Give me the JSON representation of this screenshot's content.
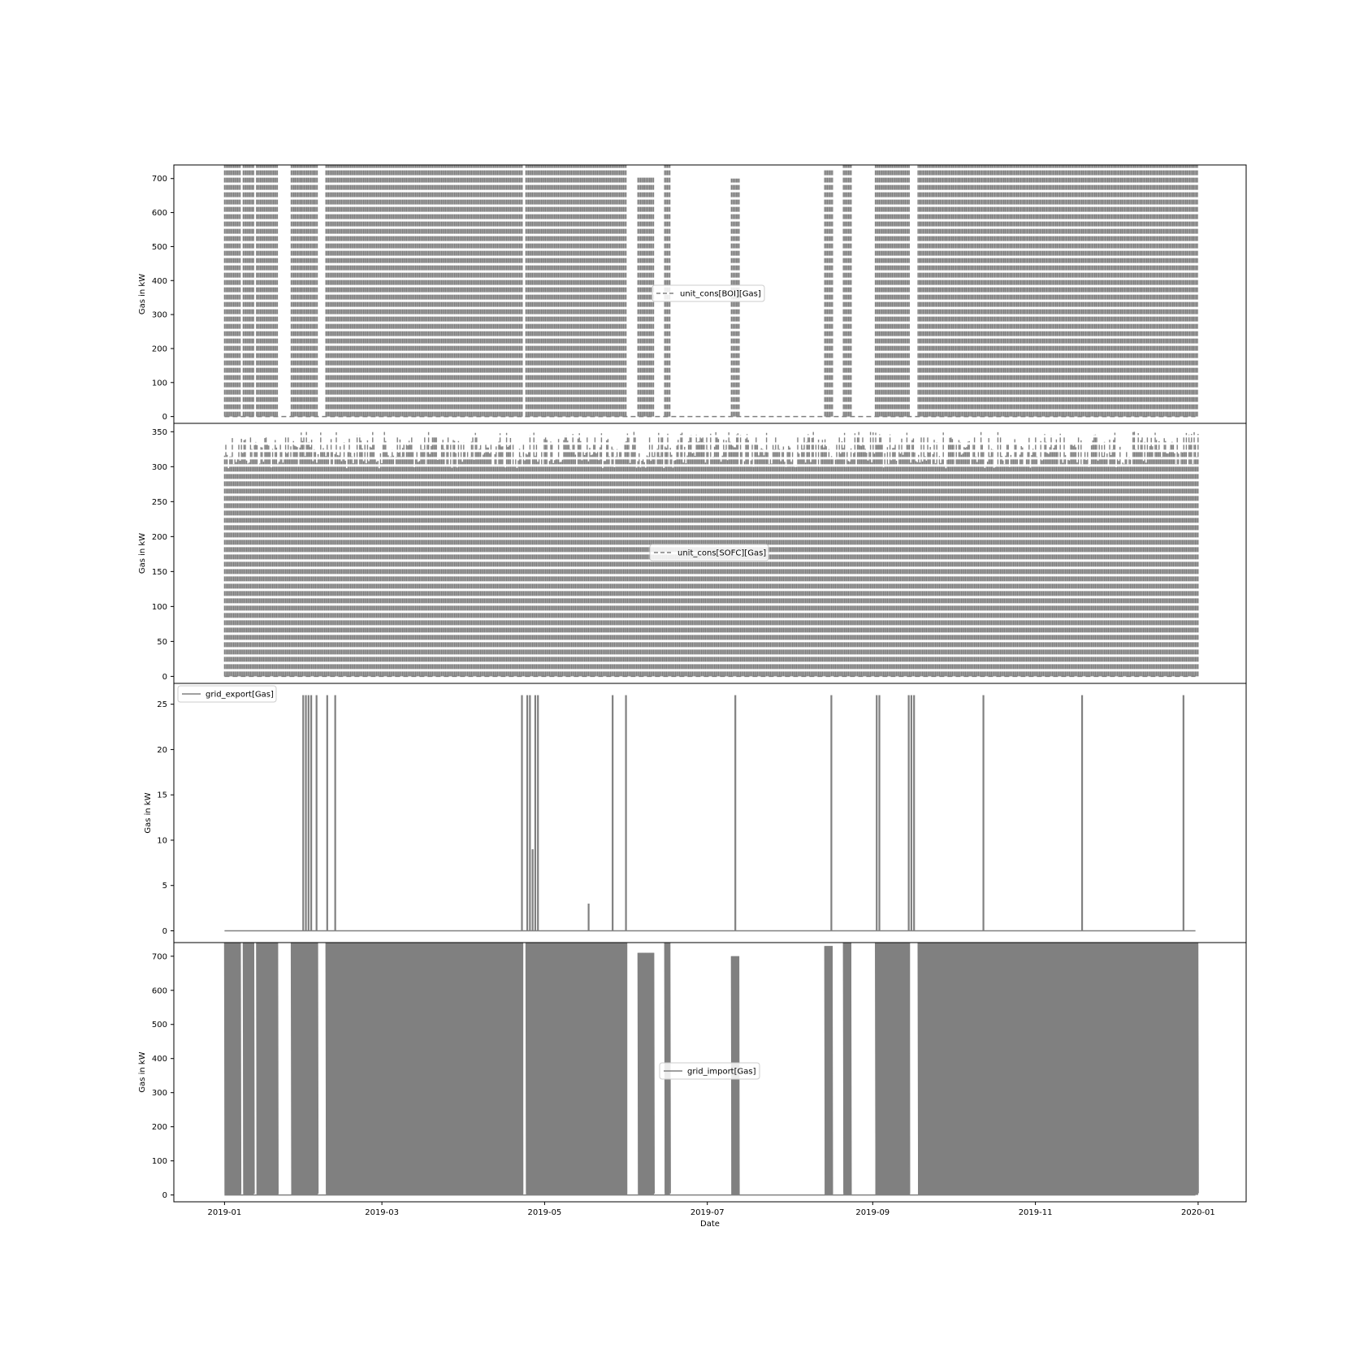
{
  "chart_data": [
    {
      "type": "line",
      "ylabel": "Gas in kW",
      "xlabel": "",
      "series": [
        {
          "name": "unit_cons[BOI][Gas]",
          "style": "dashed",
          "color": "#808080"
        }
      ],
      "yticks": [
        0,
        100,
        200,
        300,
        400,
        500,
        600,
        700
      ],
      "ylim": [
        -20,
        740
      ],
      "legend": "center",
      "activity": [
        {
          "start": "2019-01-01",
          "end": "2019-01-06",
          "low": 0,
          "high": 740
        },
        {
          "start": "2019-01-08",
          "end": "2019-01-11",
          "low": 0,
          "high": 740
        },
        {
          "start": "2019-01-13",
          "end": "2019-01-20",
          "low": 0,
          "high": 740
        },
        {
          "start": "2019-01-26",
          "end": "2019-02-04",
          "low": 0,
          "high": 740
        },
        {
          "start": "2019-02-08",
          "end": "2019-04-22",
          "low": 0,
          "high": 740
        },
        {
          "start": "2019-04-24",
          "end": "2019-05-31",
          "low": 0,
          "high": 740
        },
        {
          "start": "2019-06-05",
          "end": "2019-06-10",
          "low": 0,
          "high": 710
        },
        {
          "start": "2019-06-15",
          "end": "2019-06-16",
          "low": 0,
          "high": 740
        },
        {
          "start": "2019-07-10",
          "end": "2019-07-12",
          "low": 0,
          "high": 700
        },
        {
          "start": "2019-08-14",
          "end": "2019-08-16",
          "low": 0,
          "high": 730
        },
        {
          "start": "2019-08-21",
          "end": "2019-08-23",
          "low": 0,
          "high": 740
        },
        {
          "start": "2019-09-02",
          "end": "2019-09-14",
          "low": 0,
          "high": 740
        },
        {
          "start": "2019-09-18",
          "end": "2019-12-31",
          "low": 0,
          "high": 740
        }
      ]
    },
    {
      "type": "line",
      "ylabel": "Gas in kW",
      "xlabel": "",
      "series": [
        {
          "name": "unit_cons[SOFC][Gas]",
          "style": "dashed",
          "color": "#808080"
        }
      ],
      "yticks": [
        0,
        50,
        100,
        150,
        200,
        250,
        300,
        350
      ],
      "ylim": [
        -10,
        362
      ],
      "legend": "center",
      "activity": [
        {
          "start": "2019-01-01",
          "end": "2019-12-31",
          "low": 0,
          "high": 350
        }
      ]
    },
    {
      "type": "line",
      "ylabel": "Gas in kW",
      "xlabel": "",
      "series": [
        {
          "name": "grid_export[Gas]",
          "style": "solid",
          "color": "#808080"
        }
      ],
      "yticks": [
        0,
        5,
        10,
        15,
        20,
        25
      ],
      "ylim": [
        -1.3,
        27.3
      ],
      "legend": "upper left",
      "baseline": 0,
      "spikes": [
        {
          "date": "2019-01-30",
          "value": 26
        },
        {
          "date": "2019-01-31",
          "value": 26
        },
        {
          "date": "2019-02-01",
          "value": 26
        },
        {
          "date": "2019-02-02",
          "value": 26
        },
        {
          "date": "2019-02-04",
          "value": 26
        },
        {
          "date": "2019-02-08",
          "value": 26
        },
        {
          "date": "2019-02-11",
          "value": 26
        },
        {
          "date": "2019-04-22",
          "value": 26
        },
        {
          "date": "2019-04-24",
          "value": 26
        },
        {
          "date": "2019-04-25",
          "value": 26
        },
        {
          "date": "2019-04-26",
          "value": 9
        },
        {
          "date": "2019-04-27",
          "value": 26
        },
        {
          "date": "2019-04-28",
          "value": 26
        },
        {
          "date": "2019-05-17",
          "value": 3
        },
        {
          "date": "2019-05-26",
          "value": 26
        },
        {
          "date": "2019-05-31",
          "value": 26
        },
        {
          "date": "2019-07-11",
          "value": 26
        },
        {
          "date": "2019-08-16",
          "value": 26
        },
        {
          "date": "2019-09-02",
          "value": 26
        },
        {
          "date": "2019-09-03",
          "value": 26
        },
        {
          "date": "2019-09-14",
          "value": 26
        },
        {
          "date": "2019-09-15",
          "value": 26
        },
        {
          "date": "2019-09-16",
          "value": 26
        },
        {
          "date": "2019-10-12",
          "value": 26
        },
        {
          "date": "2019-11-18",
          "value": 26
        },
        {
          "date": "2019-12-26",
          "value": 26
        }
      ]
    },
    {
      "type": "line",
      "ylabel": "Gas in kW",
      "xlabel": "Date",
      "series": [
        {
          "name": "grid_import[Gas]",
          "style": "solid",
          "color": "#808080"
        }
      ],
      "yticks": [
        0,
        100,
        200,
        300,
        400,
        500,
        600,
        700
      ],
      "ylim": [
        -20,
        740
      ],
      "legend": "center",
      "xticks": [
        "2019-01",
        "2019-03",
        "2019-05",
        "2019-07",
        "2019-09",
        "2019-11",
        "2020-01"
      ],
      "xlim": [
        "2018-12-13",
        "2020-01-19"
      ],
      "activity": [
        {
          "start": "2019-01-01",
          "end": "2019-01-06",
          "low": 0,
          "high": 740
        },
        {
          "start": "2019-01-08",
          "end": "2019-01-11",
          "low": 0,
          "high": 740
        },
        {
          "start": "2019-01-13",
          "end": "2019-01-20",
          "low": 0,
          "high": 740
        },
        {
          "start": "2019-01-26",
          "end": "2019-02-04",
          "low": 0,
          "high": 740
        },
        {
          "start": "2019-02-08",
          "end": "2019-04-22",
          "low": 0,
          "high": 740
        },
        {
          "start": "2019-04-24",
          "end": "2019-05-31",
          "low": 0,
          "high": 740
        },
        {
          "start": "2019-06-05",
          "end": "2019-06-10",
          "low": 0,
          "high": 710
        },
        {
          "start": "2019-06-15",
          "end": "2019-06-16",
          "low": 0,
          "high": 740
        },
        {
          "start": "2019-07-10",
          "end": "2019-07-12",
          "low": 0,
          "high": 700
        },
        {
          "start": "2019-08-14",
          "end": "2019-08-16",
          "low": 0,
          "high": 730
        },
        {
          "start": "2019-08-21",
          "end": "2019-08-23",
          "low": 0,
          "high": 740
        },
        {
          "start": "2019-09-02",
          "end": "2019-09-14",
          "low": 0,
          "high": 740
        },
        {
          "start": "2019-09-18",
          "end": "2019-12-31",
          "low": 0,
          "high": 740
        }
      ]
    }
  ]
}
